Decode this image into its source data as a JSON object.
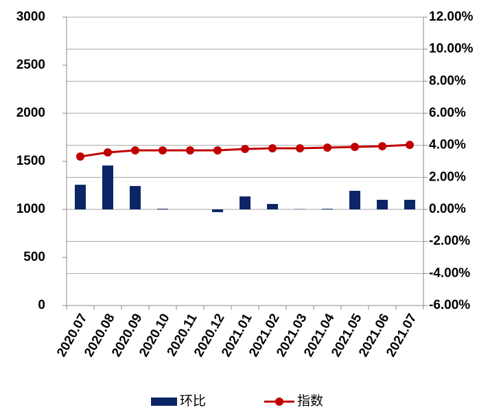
{
  "chart_data": {
    "type": "bar-line",
    "categories": [
      "2020.07",
      "2020.08",
      "2020.09",
      "2020.10",
      "2020.11",
      "2020.12",
      "2021.01",
      "2021.02",
      "2021.03",
      "2021.04",
      "2021.05",
      "2021.06",
      "2021.07"
    ],
    "series": [
      {
        "name": "环比",
        "type": "bar",
        "axis": "y2",
        "color": "#0b2566",
        "values": [
          1.54,
          2.74,
          1.46,
          0.04,
          0,
          -0.17,
          0.81,
          0.34,
          0.02,
          0.04,
          1.16,
          0.6,
          0.6
        ]
      },
      {
        "name": "指数",
        "type": "line",
        "axis": "y",
        "color": "#c00000",
        "values": [
          1550,
          1593,
          1614,
          1614,
          1614,
          1614,
          1629,
          1636,
          1636,
          1643,
          1650,
          1657,
          1671
        ]
      }
    ],
    "ylim": [
      0,
      3000
    ],
    "yticks": [
      0,
      500,
      1000,
      1500,
      2000,
      2500,
      3000
    ],
    "y2lim": [
      -6,
      12
    ],
    "y2ticks": [
      {
        "value": -6,
        "label": "-6.00%"
      },
      {
        "value": -4,
        "label": "-4.00%"
      },
      {
        "value": -2,
        "label": "-2.00%"
      },
      {
        "value": 0,
        "label": "0.00%"
      },
      {
        "value": 2,
        "label": "2.00%"
      },
      {
        "value": 4,
        "label": "4.00%"
      },
      {
        "value": 6,
        "label": "6.00%"
      },
      {
        "value": 8,
        "label": "8.00%"
      },
      {
        "value": 10,
        "label": "10.00%"
      },
      {
        "value": 12,
        "label": "12.00%"
      }
    ],
    "grid": true,
    "legend": "bottom"
  }
}
